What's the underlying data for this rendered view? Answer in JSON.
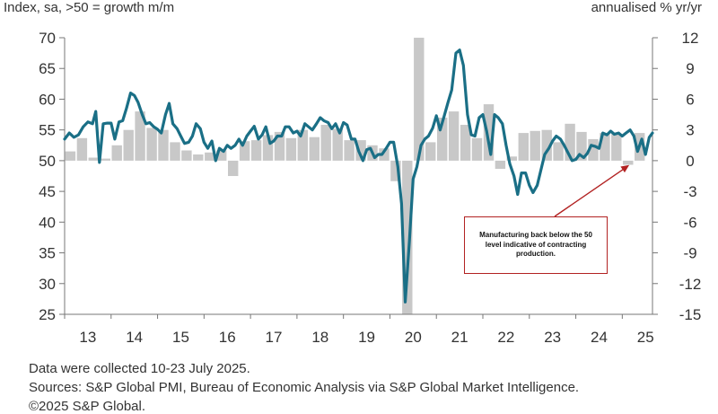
{
  "header": {
    "left_axis_title": "Index, sa, >50 = growth m/m",
    "right_axis_title": "annualised % yr/yr"
  },
  "annotation": {
    "text": "Manufacturing back below the 50 level indicative of contracting production."
  },
  "footer": {
    "date_note": "Data were collected 10-23 July 2025.",
    "sources": "Sources: S&P Global PMI, Bureau of Economic Analysis via S&P Global Market Intelligence.",
    "copyright": "©2025 S&P Global."
  },
  "colors": {
    "line": "#1a6f86",
    "bars": "#c8c8c8",
    "annotation": "#b22222"
  },
  "chart_data": {
    "type": "line+bar",
    "x_ticks": [
      "13",
      "14",
      "15",
      "16",
      "17",
      "18",
      "19",
      "20",
      "21",
      "22",
      "23",
      "24",
      "25"
    ],
    "xlim": [
      2013.0,
      2025.65
    ],
    "left_axis": {
      "ylim": [
        25,
        70
      ],
      "ticks": [
        25,
        30,
        35,
        40,
        45,
        50,
        55,
        60,
        65,
        70
      ]
    },
    "right_axis": {
      "ylim": [
        -15,
        12
      ],
      "ticks": [
        -15,
        -12,
        -9,
        -6,
        -3,
        0,
        3,
        6,
        9,
        12
      ]
    },
    "grid": false,
    "series": [
      {
        "kind": "bar",
        "axis": "right",
        "data": [
          [
            2013.125,
            0.9
          ],
          [
            2013.375,
            2.2
          ],
          [
            2013.625,
            0.3
          ],
          [
            2013.875,
            0.2
          ],
          [
            2014.125,
            1.5
          ],
          [
            2014.375,
            3.0
          ],
          [
            2014.625,
            4.8
          ],
          [
            2014.875,
            3.2
          ],
          [
            2015.125,
            3.0
          ],
          [
            2015.375,
            1.8
          ],
          [
            2015.625,
            1.0
          ],
          [
            2015.875,
            0.6
          ],
          [
            2016.125,
            0.8
          ],
          [
            2016.375,
            1.0
          ],
          [
            2016.625,
            -1.5
          ],
          [
            2016.875,
            1.9
          ],
          [
            2017.125,
            2.0
          ],
          [
            2017.375,
            2.5
          ],
          [
            2017.625,
            2.8
          ],
          [
            2017.875,
            2.2
          ],
          [
            2018.125,
            3.0
          ],
          [
            2018.375,
            2.3
          ],
          [
            2018.625,
            3.5
          ],
          [
            2018.875,
            3.1
          ],
          [
            2019.125,
            2.0
          ],
          [
            2019.375,
            2.0
          ],
          [
            2019.625,
            1.5
          ],
          [
            2019.875,
            1.2
          ],
          [
            2020.125,
            -2.0
          ],
          [
            2020.375,
            -15.0
          ],
          [
            2020.625,
            12.0
          ],
          [
            2020.875,
            1.8
          ],
          [
            2021.125,
            4.2
          ],
          [
            2021.375,
            4.8
          ],
          [
            2021.625,
            3.5
          ],
          [
            2021.875,
            2.2
          ],
          [
            2022.125,
            5.5
          ],
          [
            2022.375,
            -0.8
          ],
          [
            2022.625,
            0.4
          ],
          [
            2022.875,
            2.7
          ],
          [
            2023.125,
            2.9
          ],
          [
            2023.375,
            3.0
          ],
          [
            2023.625,
            1.8
          ],
          [
            2023.875,
            3.6
          ],
          [
            2024.125,
            2.8
          ],
          [
            2024.375,
            2.1
          ],
          [
            2024.625,
            2.7
          ],
          [
            2024.875,
            2.6
          ],
          [
            2025.125,
            -0.4
          ],
          [
            2025.375,
            2.7
          ]
        ]
      },
      {
        "kind": "line",
        "axis": "left",
        "data": [
          [
            2013.0,
            53.5
          ],
          [
            2013.1,
            54.5
          ],
          [
            2013.2,
            53.8
          ],
          [
            2013.3,
            54.2
          ],
          [
            2013.4,
            55.5
          ],
          [
            2013.5,
            56.3
          ],
          [
            2013.6,
            56.0
          ],
          [
            2013.67,
            58.0
          ],
          [
            2013.75,
            49.7
          ],
          [
            2013.83,
            56.0
          ],
          [
            2013.92,
            56.1
          ],
          [
            2014.0,
            56.1
          ],
          [
            2014.08,
            53.5
          ],
          [
            2014.17,
            56.3
          ],
          [
            2014.25,
            56.5
          ],
          [
            2014.33,
            58.5
          ],
          [
            2014.42,
            61.0
          ],
          [
            2014.5,
            60.6
          ],
          [
            2014.58,
            59.5
          ],
          [
            2014.67,
            57.5
          ],
          [
            2014.75,
            56.0
          ],
          [
            2014.83,
            56.2
          ],
          [
            2014.92,
            55.5
          ],
          [
            2015.0,
            55.1
          ],
          [
            2015.08,
            54.5
          ],
          [
            2015.17,
            57.5
          ],
          [
            2015.25,
            59.3
          ],
          [
            2015.33,
            56.0
          ],
          [
            2015.42,
            55.2
          ],
          [
            2015.5,
            54.0
          ],
          [
            2015.58,
            52.8
          ],
          [
            2015.67,
            53.0
          ],
          [
            2015.75,
            54.0
          ],
          [
            2015.83,
            56.0
          ],
          [
            2015.92,
            55.2
          ],
          [
            2016.0,
            53.0
          ],
          [
            2016.08,
            52.0
          ],
          [
            2016.17,
            53.2
          ],
          [
            2016.25,
            50.0
          ],
          [
            2016.33,
            52.0
          ],
          [
            2016.42,
            51.5
          ],
          [
            2016.5,
            52.5
          ],
          [
            2016.58,
            52.0
          ],
          [
            2016.67,
            52.5
          ],
          [
            2016.75,
            53.5
          ],
          [
            2016.83,
            52.5
          ],
          [
            2016.92,
            54.0
          ],
          [
            2017.0,
            54.8
          ],
          [
            2017.08,
            55.6
          ],
          [
            2017.17,
            53.5
          ],
          [
            2017.25,
            54.2
          ],
          [
            2017.33,
            55.5
          ],
          [
            2017.42,
            52.8
          ],
          [
            2017.5,
            53.2
          ],
          [
            2017.58,
            54.0
          ],
          [
            2017.67,
            54.0
          ],
          [
            2017.75,
            55.5
          ],
          [
            2017.83,
            55.5
          ],
          [
            2017.92,
            54.5
          ],
          [
            2018.0,
            54.8
          ],
          [
            2018.08,
            54.0
          ],
          [
            2018.17,
            56.0
          ],
          [
            2018.25,
            55.5
          ],
          [
            2018.33,
            55.0
          ],
          [
            2018.42,
            56.0
          ],
          [
            2018.5,
            57.0
          ],
          [
            2018.58,
            56.5
          ],
          [
            2018.67,
            56.2
          ],
          [
            2018.75,
            55.2
          ],
          [
            2018.83,
            56.0
          ],
          [
            2018.92,
            54.5
          ],
          [
            2019.0,
            56.2
          ],
          [
            2019.08,
            55.8
          ],
          [
            2019.17,
            53.5
          ],
          [
            2019.25,
            53.5
          ],
          [
            2019.33,
            51.5
          ],
          [
            2019.42,
            50.0
          ],
          [
            2019.5,
            51.8
          ],
          [
            2019.58,
            52.0
          ],
          [
            2019.67,
            50.5
          ],
          [
            2019.75,
            51.0
          ],
          [
            2019.83,
            51.0
          ],
          [
            2019.92,
            52.0
          ],
          [
            2020.0,
            53.0
          ],
          [
            2020.08,
            53.0
          ],
          [
            2020.17,
            49.0
          ],
          [
            2020.25,
            43.0
          ],
          [
            2020.33,
            27.0
          ],
          [
            2020.42,
            37.0
          ],
          [
            2020.5,
            47.0
          ],
          [
            2020.58,
            49.0
          ],
          [
            2020.67,
            52.5
          ],
          [
            2020.75,
            53.5
          ],
          [
            2020.83,
            54.0
          ],
          [
            2020.92,
            55.3
          ],
          [
            2021.0,
            57.3
          ],
          [
            2021.08,
            55.0
          ],
          [
            2021.17,
            57.3
          ],
          [
            2021.25,
            59.5
          ],
          [
            2021.33,
            61.5
          ],
          [
            2021.42,
            67.5
          ],
          [
            2021.5,
            68.0
          ],
          [
            2021.58,
            65.5
          ],
          [
            2021.67,
            57.5
          ],
          [
            2021.75,
            54.2
          ],
          [
            2021.83,
            54.0
          ],
          [
            2021.92,
            57.0
          ],
          [
            2022.0,
            57.5
          ],
          [
            2022.08,
            54.8
          ],
          [
            2022.17,
            51.0
          ],
          [
            2022.25,
            57.5
          ],
          [
            2022.33,
            57.0
          ],
          [
            2022.42,
            56.0
          ],
          [
            2022.5,
            52.5
          ],
          [
            2022.58,
            49.5
          ],
          [
            2022.67,
            47.5
          ],
          [
            2022.75,
            44.5
          ],
          [
            2022.83,
            48.0
          ],
          [
            2022.92,
            48.0
          ],
          [
            2023.0,
            46.0
          ],
          [
            2023.08,
            44.8
          ],
          [
            2023.17,
            46.0
          ],
          [
            2023.25,
            48.5
          ],
          [
            2023.33,
            51.0
          ],
          [
            2023.42,
            52.0
          ],
          [
            2023.5,
            53.2
          ],
          [
            2023.58,
            54.0
          ],
          [
            2023.67,
            53.5
          ],
          [
            2023.75,
            52.5
          ],
          [
            2023.83,
            51.3
          ],
          [
            2023.92,
            50.0
          ],
          [
            2024.0,
            50.2
          ],
          [
            2024.08,
            51.0
          ],
          [
            2024.17,
            50.5
          ],
          [
            2024.25,
            51.2
          ],
          [
            2024.33,
            52.5
          ],
          [
            2024.42,
            52.3
          ],
          [
            2024.5,
            52.0
          ],
          [
            2024.58,
            54.5
          ],
          [
            2024.67,
            54.2
          ],
          [
            2024.75,
            54.8
          ],
          [
            2024.83,
            54.3
          ],
          [
            2024.92,
            54.5
          ],
          [
            2025.0,
            54.0
          ],
          [
            2025.08,
            54.5
          ],
          [
            2025.17,
            55.0
          ],
          [
            2025.25,
            54.0
          ],
          [
            2025.33,
            51.5
          ],
          [
            2025.42,
            53.5
          ],
          [
            2025.5,
            51.0
          ],
          [
            2025.58,
            53.8
          ],
          [
            2025.65,
            54.5
          ]
        ]
      }
    ],
    "annotation": {
      "text": "Manufacturing back below the 50 level indicative of contracting production.",
      "arrow_target": [
        2025.15,
        49.3
      ]
    }
  }
}
